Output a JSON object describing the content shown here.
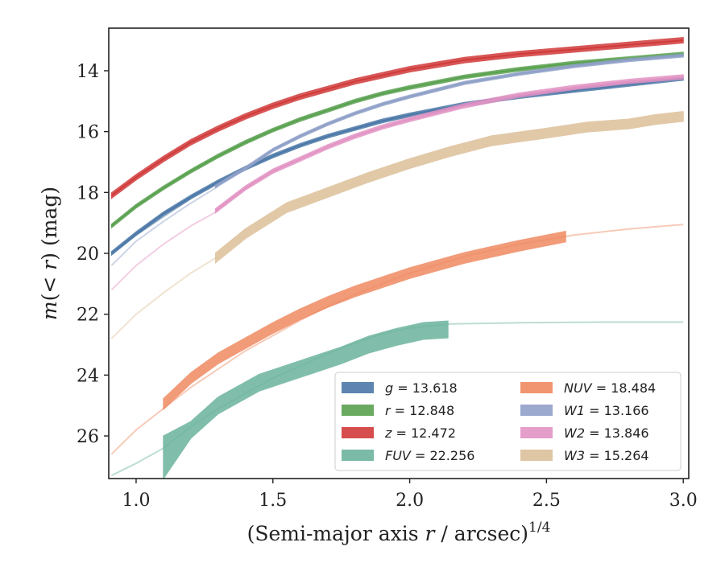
{
  "chart_data": {
    "type": "line",
    "title": "",
    "xlabel_main": "(Semi-major axis ",
    "xlabel_var": "r",
    "xlabel_tail": " / arcsec)",
    "xlabel_sup": "1/4",
    "ylabel_pre": "m",
    "ylabel_mid": "(< ",
    "ylabel_var": "r",
    "ylabel_post": ") (mag)",
    "xlim": [
      0.9,
      3.02
    ],
    "ylim": [
      27.4,
      12.6
    ],
    "y_inverted": true,
    "xticks": [
      1.0,
      1.5,
      2.0,
      2.5,
      3.0
    ],
    "xtick_labels": [
      "1.0",
      "1.5",
      "2.0",
      "2.5",
      "3.0"
    ],
    "yticks": [
      14,
      16,
      18,
      20,
      22,
      24,
      26
    ],
    "ytick_labels": [
      "14",
      "16",
      "18",
      "20",
      "22",
      "24",
      "26"
    ],
    "grid": false,
    "legend_position": "bottom-right",
    "series": [
      {
        "name": "g = 13.618",
        "var": "g",
        "value": "13.618",
        "color": "#4c78a8",
        "faint": [
          [
            0.91,
            20.0
          ],
          [
            1.0,
            19.4
          ],
          [
            1.1,
            18.8
          ],
          [
            1.2,
            18.2
          ]
        ],
        "strong": [
          [
            0.91,
            20.0
          ],
          [
            1.0,
            19.35
          ],
          [
            1.1,
            18.7
          ],
          [
            1.2,
            18.15
          ],
          [
            1.3,
            17.65
          ],
          [
            1.4,
            17.2
          ],
          [
            1.5,
            16.8
          ],
          [
            1.6,
            16.45
          ],
          [
            1.7,
            16.15
          ],
          [
            1.8,
            15.9
          ],
          [
            1.9,
            15.65
          ],
          [
            2.0,
            15.45
          ],
          [
            2.2,
            15.1
          ],
          [
            2.4,
            14.85
          ],
          [
            2.6,
            14.65
          ],
          [
            2.8,
            14.45
          ],
          [
            3.0,
            14.25
          ]
        ],
        "band": 0.12
      },
      {
        "name": "r = 12.848",
        "var": "r",
        "value": "12.848",
        "color": "#59a14f",
        "faint": [],
        "strong": [
          [
            0.91,
            19.1
          ],
          [
            1.0,
            18.45
          ],
          [
            1.1,
            17.85
          ],
          [
            1.2,
            17.3
          ],
          [
            1.3,
            16.8
          ],
          [
            1.4,
            16.35
          ],
          [
            1.5,
            15.95
          ],
          [
            1.6,
            15.6
          ],
          [
            1.7,
            15.3
          ],
          [
            1.8,
            15.0
          ],
          [
            1.9,
            14.75
          ],
          [
            2.0,
            14.55
          ],
          [
            2.2,
            14.2
          ],
          [
            2.4,
            13.95
          ],
          [
            2.6,
            13.75
          ],
          [
            2.8,
            13.6
          ],
          [
            3.0,
            13.45
          ]
        ],
        "band": 0.12
      },
      {
        "name": "z = 12.472",
        "var": "z",
        "value": "12.472",
        "color": "#d13a3a",
        "faint": [],
        "strong": [
          [
            0.91,
            18.1
          ],
          [
            1.0,
            17.5
          ],
          [
            1.1,
            16.9
          ],
          [
            1.2,
            16.35
          ],
          [
            1.3,
            15.9
          ],
          [
            1.4,
            15.5
          ],
          [
            1.5,
            15.15
          ],
          [
            1.6,
            14.85
          ],
          [
            1.7,
            14.6
          ],
          [
            1.8,
            14.35
          ],
          [
            1.9,
            14.15
          ],
          [
            2.0,
            13.95
          ],
          [
            2.2,
            13.65
          ],
          [
            2.4,
            13.45
          ],
          [
            2.6,
            13.3
          ],
          [
            2.8,
            13.15
          ],
          [
            3.0,
            13.0
          ]
        ],
        "band": 0.18
      },
      {
        "name": "FUV = 22.256",
        "var": "FUV",
        "value": "22.256",
        "color": "#6bb39d",
        "faint": [
          [
            0.91,
            27.3
          ],
          [
            1.0,
            26.9
          ],
          [
            1.1,
            26.4
          ],
          [
            1.2,
            25.7
          ],
          [
            1.3,
            25.1
          ],
          [
            1.4,
            24.6
          ],
          [
            1.5,
            24.1
          ],
          [
            1.6,
            23.7
          ],
          [
            1.7,
            23.3
          ],
          [
            1.8,
            22.95
          ],
          [
            1.9,
            22.65
          ],
          [
            2.0,
            22.45
          ],
          [
            2.15,
            22.32
          ],
          [
            2.4,
            22.28
          ],
          [
            2.7,
            22.26
          ],
          [
            3.0,
            22.26
          ]
        ],
        "strong": [
          [
            1.1,
            26.7
          ],
          [
            1.2,
            25.8
          ],
          [
            1.3,
            25.0
          ],
          [
            1.45,
            24.25
          ],
          [
            1.6,
            23.8
          ],
          [
            1.75,
            23.35
          ],
          [
            1.85,
            23.0
          ],
          [
            1.95,
            22.75
          ],
          [
            2.05,
            22.55
          ],
          [
            2.14,
            22.5
          ]
        ],
        "band": 0.55,
        "band_start": 1.1,
        "band_start_low": 26.0,
        "band_start_high": 27.4
      },
      {
        "name": "NUV = 18.484",
        "var": "NUV",
        "value": "18.484",
        "color": "#ef8a62",
        "faint": [
          [
            0.91,
            26.6
          ],
          [
            1.0,
            25.8
          ],
          [
            1.1,
            25.1
          ],
          [
            1.2,
            24.4
          ],
          [
            1.3,
            23.8
          ],
          [
            1.4,
            23.2
          ],
          [
            1.5,
            22.7
          ],
          [
            1.6,
            22.2
          ],
          [
            1.7,
            21.75
          ],
          [
            1.8,
            21.35
          ],
          [
            1.9,
            21.0
          ],
          [
            2.0,
            20.65
          ],
          [
            2.2,
            20.1
          ],
          [
            2.4,
            19.7
          ],
          [
            2.6,
            19.4
          ],
          [
            2.8,
            19.2
          ],
          [
            3.0,
            19.05
          ]
        ],
        "strong": [
          [
            1.1,
            24.95
          ],
          [
            1.2,
            24.1
          ],
          [
            1.3,
            23.45
          ],
          [
            1.4,
            22.95
          ],
          [
            1.5,
            22.45
          ],
          [
            1.6,
            22.0
          ],
          [
            1.7,
            21.6
          ],
          [
            1.8,
            21.25
          ],
          [
            1.9,
            20.95
          ],
          [
            2.0,
            20.65
          ],
          [
            2.2,
            20.15
          ],
          [
            2.4,
            19.75
          ],
          [
            2.57,
            19.45
          ]
        ],
        "band": 0.35
      },
      {
        "name": "W1 = 13.166",
        "var": "W1",
        "value": "13.166",
        "color": "#8fa0c8",
        "faint": [
          [
            0.91,
            20.4
          ],
          [
            1.0,
            19.6
          ],
          [
            1.1,
            18.95
          ],
          [
            1.2,
            18.35
          ],
          [
            1.3,
            17.8
          ]
        ],
        "strong": [
          [
            1.29,
            17.8
          ],
          [
            1.4,
            17.2
          ],
          [
            1.5,
            16.6
          ],
          [
            1.6,
            16.15
          ],
          [
            1.7,
            15.75
          ],
          [
            1.8,
            15.4
          ],
          [
            1.9,
            15.1
          ],
          [
            2.0,
            14.85
          ],
          [
            2.2,
            14.4
          ],
          [
            2.4,
            14.1
          ],
          [
            2.6,
            13.85
          ],
          [
            2.8,
            13.65
          ],
          [
            3.0,
            13.5
          ]
        ],
        "band": 0.1
      },
      {
        "name": "W2 = 13.846",
        "var": "W2",
        "value": "13.846",
        "color": "#e293c4",
        "faint": [
          [
            0.91,
            21.2
          ],
          [
            1.0,
            20.4
          ],
          [
            1.1,
            19.7
          ],
          [
            1.2,
            19.1
          ],
          [
            1.3,
            18.6
          ]
        ],
        "strong": [
          [
            1.29,
            18.6
          ],
          [
            1.4,
            17.85
          ],
          [
            1.5,
            17.3
          ],
          [
            1.6,
            16.9
          ],
          [
            1.7,
            16.5
          ],
          [
            1.8,
            16.15
          ],
          [
            1.9,
            15.85
          ],
          [
            2.0,
            15.6
          ],
          [
            2.2,
            15.15
          ],
          [
            2.4,
            14.8
          ],
          [
            2.6,
            14.55
          ],
          [
            2.8,
            14.35
          ],
          [
            3.0,
            14.2
          ]
        ],
        "band": 0.14
      },
      {
        "name": "W3 = 15.264",
        "var": "W3",
        "value": "15.264",
        "color": "#dcc09a",
        "faint": [
          [
            0.91,
            22.8
          ],
          [
            1.0,
            22.0
          ],
          [
            1.1,
            21.3
          ],
          [
            1.2,
            20.65
          ],
          [
            1.3,
            20.1
          ]
        ],
        "strong": [
          [
            1.29,
            20.15
          ],
          [
            1.4,
            19.35
          ],
          [
            1.55,
            18.5
          ],
          [
            1.7,
            18.0
          ],
          [
            1.85,
            17.5
          ],
          [
            2.0,
            17.05
          ],
          [
            2.15,
            16.65
          ],
          [
            2.3,
            16.3
          ],
          [
            2.5,
            16.05
          ],
          [
            2.65,
            15.85
          ],
          [
            2.8,
            15.75
          ],
          [
            2.9,
            15.6
          ],
          [
            3.0,
            15.5
          ]
        ],
        "band": 0.32
      }
    ]
  }
}
